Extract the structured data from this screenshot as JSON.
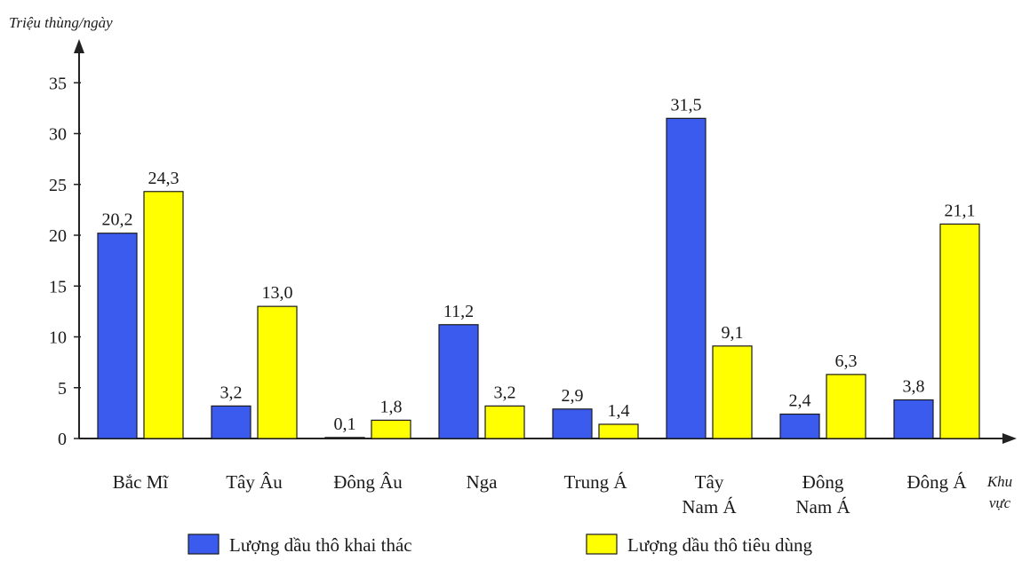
{
  "chart_data": {
    "type": "bar",
    "ylabel": "Triệu thùng/ngày",
    "xlabel": "Khu vực",
    "ylim": [
      0,
      35
    ],
    "yticks": [
      0,
      5,
      10,
      15,
      20,
      25,
      30,
      35
    ],
    "categories": [
      [
        "Bắc Mĩ"
      ],
      [
        "Tây Âu"
      ],
      [
        "Đông Âu"
      ],
      [
        "Nga"
      ],
      [
        "Trung Á"
      ],
      [
        "Tây",
        "Nam Á"
      ],
      [
        "Đông",
        "Nam Á"
      ],
      [
        "Đông Á"
      ]
    ],
    "series": [
      {
        "name": "Lượng dầu thô khai thác",
        "color": "#3b5bef",
        "values": [
          20.2,
          3.2,
          0.1,
          11.2,
          2.9,
          31.5,
          2.4,
          3.8
        ],
        "labels": [
          "20,2",
          "3,2",
          "0,1",
          "11,2",
          "2,9",
          "31,5",
          "2,4",
          "3,8"
        ]
      },
      {
        "name": "Lượng dầu thô tiêu dùng",
        "color": "#ffff00",
        "values": [
          24.3,
          13.0,
          1.8,
          3.2,
          1.4,
          9.1,
          6.3,
          21.1
        ],
        "labels": [
          "24,3",
          "13,0",
          "1,8",
          "3,2",
          "1,4",
          "9,1",
          "6,3",
          "21,1"
        ]
      }
    ],
    "legend_position": "bottom",
    "grid": false
  }
}
